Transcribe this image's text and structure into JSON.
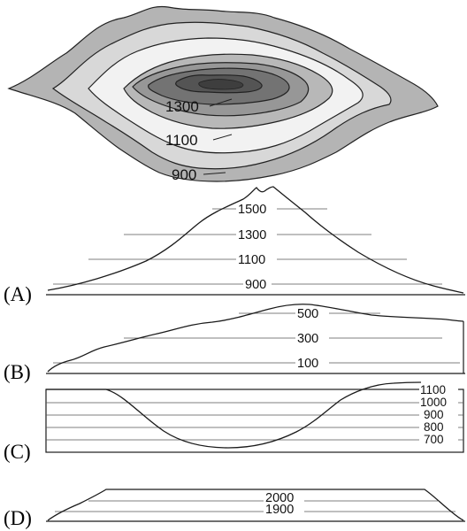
{
  "map": {
    "contour_labels": [
      "1300",
      "1100",
      "900"
    ],
    "colors": {
      "outer": "#b4b4b4",
      "ring2": "#d8d8d8",
      "ring3": "#f2f2f2",
      "ring4": "#b8b8b8",
      "ring5": "#979797",
      "ring6": "#737373",
      "peak": "#545454"
    }
  },
  "profiles": [
    {
      "option": "(A)",
      "labels": [
        "1500",
        "1300",
        "1100",
        "900"
      ]
    },
    {
      "option": "(B)",
      "labels": [
        "500",
        "300",
        "100"
      ]
    },
    {
      "option": "(C)",
      "labels": [
        "1100",
        "1000",
        "900",
        "800",
        "700"
      ]
    },
    {
      "option": "(D)",
      "labels": [
        "2000",
        "1900"
      ]
    }
  ]
}
